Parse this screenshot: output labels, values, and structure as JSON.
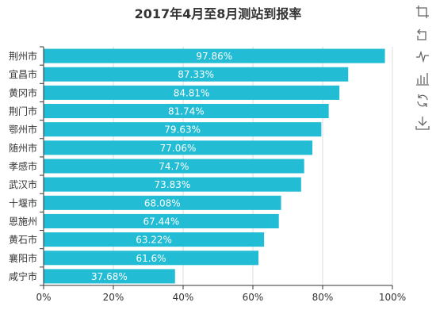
{
  "chart_data": {
    "type": "bar",
    "orientation": "horizontal",
    "title": "2017年4月至8月测站到报率",
    "categories": [
      "荆州市",
      "宜昌市",
      "黄冈市",
      "荆门市",
      "鄂州市",
      "随州市",
      "孝感市",
      "武汉市",
      "十堰市",
      "恩施州",
      "黄石市",
      "襄阳市",
      "咸宁市"
    ],
    "values": [
      97.86,
      87.33,
      84.81,
      81.74,
      79.63,
      77.06,
      74.7,
      73.83,
      68.08,
      67.44,
      63.22,
      61.6,
      37.68
    ],
    "data_labels": [
      "97.86%",
      "87.33%",
      "84.81%",
      "81.74%",
      "79.63%",
      "77.06%",
      "74.7%",
      "73.83%",
      "68.08%",
      "67.44%",
      "63.22%",
      "61.6%",
      "37.68%"
    ],
    "xlim": [
      0,
      100
    ],
    "x_ticks": [
      0,
      20,
      40,
      60,
      80,
      100
    ],
    "x_tick_labels": [
      "0%",
      "20%",
      "40%",
      "60%",
      "80%",
      "100%"
    ],
    "grid": true,
    "bar_color": "#22bcd4",
    "label_color": "#ffffff",
    "axis_color": "#333333",
    "grid_color": "#dddddd"
  },
  "toolbox": {
    "icons": [
      "crop-icon",
      "restore-icon",
      "line-chart-icon",
      "bar-chart-icon",
      "refresh-icon",
      "download-icon"
    ]
  }
}
